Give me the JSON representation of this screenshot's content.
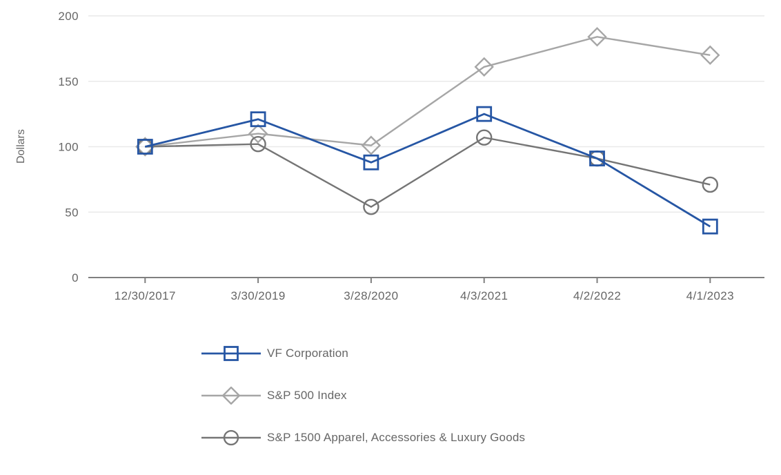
{
  "chart_data": {
    "type": "line",
    "title": "",
    "xlabel": "",
    "ylabel": "Dollars",
    "ylim": [
      0,
      200
    ],
    "yticks": [
      0,
      50,
      100,
      150,
      200
    ],
    "grid": "horizontal",
    "legend_position": "bottom-left",
    "categories": [
      "12/30/2017",
      "3/30/2019",
      "3/28/2020",
      "4/3/2021",
      "4/2/2022",
      "4/1/2023"
    ],
    "series": [
      {
        "name": "VF Corporation",
        "marker": "square",
        "color": "#2656A4",
        "values": [
          100,
          121,
          88,
          125,
          91,
          39
        ]
      },
      {
        "name": "S&P 500 Index",
        "marker": "diamond",
        "color": "#A6A6A6",
        "values": [
          100,
          110,
          101,
          161,
          184,
          170
        ]
      },
      {
        "name": "S&P 1500 Apparel, Accessories & Luxury Goods",
        "marker": "circle",
        "color": "#757575",
        "values": [
          100,
          102,
          54,
          107,
          91,
          71
        ]
      }
    ]
  },
  "styles": {
    "axis_color": "#7F7F7F",
    "grid_color": "#E9E9E9",
    "text_color": "#666666",
    "background": "#FFFFFF"
  }
}
